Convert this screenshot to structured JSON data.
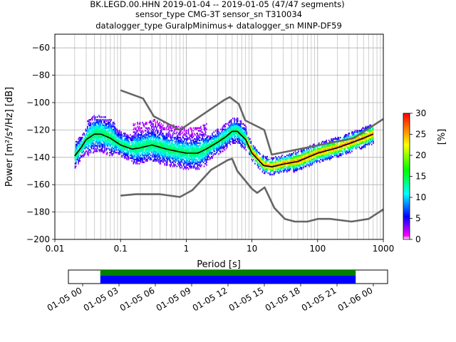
{
  "header": {
    "line1": "BK.LEGD.00.HHN   2019-01-04 -- 2019-01-05  (47/47 segments)",
    "line2": "sensor_type CMG-3T sensor_sn T310034",
    "line3": "datalogger_type GuralpMinimus+ datalogger_sn MINP-DF59"
  },
  "chart_data": [
    {
      "type": "heatmap",
      "xlabel": "Period [s]",
      "ylabel": "Power [m²/s⁴/Hz] [dB]",
      "x_scale": "log",
      "xlim": [
        0.01,
        1000
      ],
      "ylim": [
        -200,
        -50
      ],
      "x_ticks": [
        "0.01",
        "0.1",
        "1",
        "10",
        "100",
        "1000"
      ],
      "y_ticks": [
        "−60",
        "−80",
        "−100",
        "−120",
        "−140",
        "−160",
        "−180",
        "−200"
      ],
      "grid": true,
      "colorbar": {
        "label": "[%]",
        "range": [
          0,
          30
        ],
        "ticks": [
          "0",
          "5",
          "10",
          "15",
          "20",
          "25",
          "30"
        ]
      },
      "series": [
        {
          "role": "mean",
          "color": "#000000",
          "x": [
            0.02,
            0.025,
            0.03,
            0.04,
            0.05,
            0.07,
            0.1,
            0.15,
            0.2,
            0.3,
            0.5,
            1,
            1.5,
            2,
            3,
            4,
            5,
            6,
            8,
            10,
            15,
            20,
            30,
            50,
            100,
            200,
            300,
            500,
            700
          ],
          "y": [
            -139,
            -133,
            -127,
            -123,
            -123,
            -126,
            -131,
            -134,
            -133,
            -131,
            -134,
            -137,
            -137,
            -134,
            -129,
            -125,
            -121,
            -121,
            -127,
            -137,
            -146,
            -147,
            -145,
            -143,
            -137,
            -133,
            -130,
            -126,
            -123
          ]
        },
        {
          "role": "NHNM",
          "color": "#666666",
          "x": [
            0.1,
            0.22,
            0.32,
            0.8,
            3.8,
            4.6,
            6.3,
            7.9,
            15.4,
            20,
            354.8,
            1000
          ],
          "y": [
            -91,
            -97,
            -110,
            -120,
            -98,
            -96,
            -101,
            -113,
            -120,
            -138,
            -126,
            -112
          ]
        },
        {
          "role": "NLNM",
          "color": "#666666",
          "x": [
            0.1,
            0.17,
            0.4,
            0.8,
            1.24,
            2.4,
            4.3,
            5,
            6,
            10,
            12,
            15.6,
            21.9,
            31.6,
            45,
            70,
            101,
            154,
            328,
            600,
            1000
          ],
          "y": [
            -168,
            -167,
            -167,
            -169,
            -164,
            -149,
            -142,
            -141,
            -150,
            -163,
            -166,
            -162,
            -177,
            -185,
            -187,
            -187,
            -185,
            -185,
            -187,
            -185,
            -178
          ]
        }
      ]
    },
    {
      "type": "timeline",
      "x_ticks": [
        "01-05 00",
        "01-05 03",
        "01-05 06",
        "01-05 09",
        "01-05 12",
        "01-05 15",
        "01-05 18",
        "01-05 21",
        "01-06 00"
      ],
      "xlim": [
        "2019-01-04 21:00",
        "2019-01-06 03:00"
      ],
      "bars": [
        {
          "color": "#008000",
          "start": "2019-01-05 00:00",
          "end": "2019-01-06 00:00"
        },
        {
          "color": "#0000ff",
          "start": "2019-01-05 00:00",
          "end": "2019-01-06 00:00"
        }
      ]
    }
  ]
}
